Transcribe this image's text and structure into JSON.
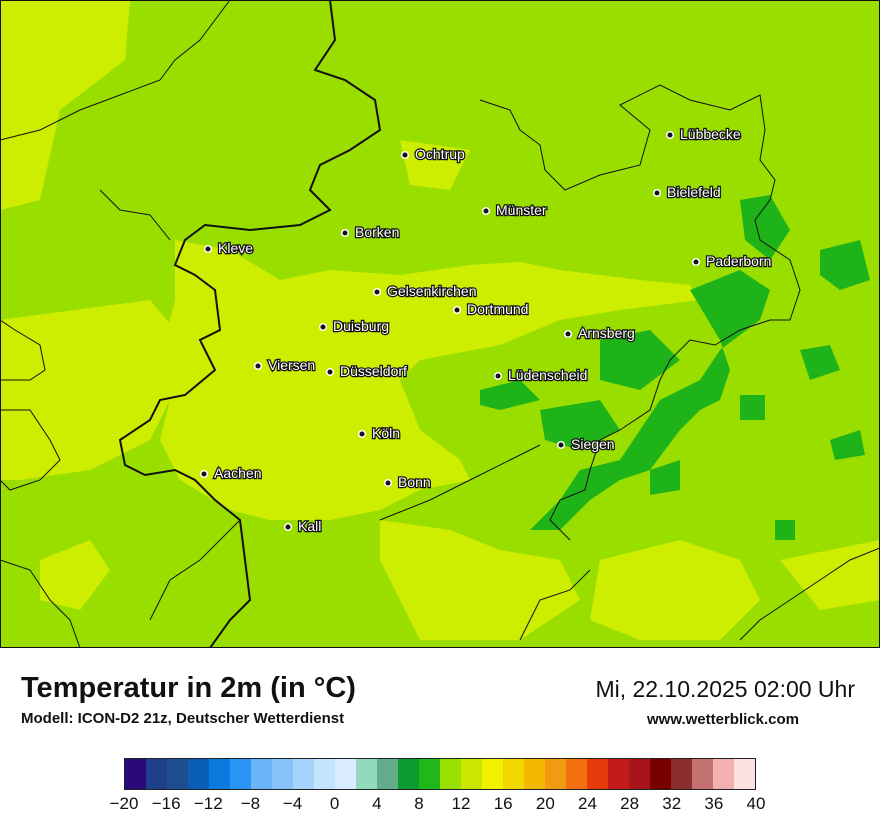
{
  "header": {
    "title": "Temperatur in 2m (in °C)",
    "model": "Modell: ICON-D2 21z, Deutscher Wetterdienst",
    "datetime": "Mi, 22.10.2025 02:00 Uhr",
    "website": "www.wetterblick.com"
  },
  "cities": [
    {
      "name": "Lübbecke"
    },
    {
      "name": "Ochtrup"
    },
    {
      "name": "Bielefeld"
    },
    {
      "name": "Münster"
    },
    {
      "name": "Kleve"
    },
    {
      "name": "Borken"
    },
    {
      "name": "Paderborn"
    },
    {
      "name": "Gelsenkirchen"
    },
    {
      "name": "Dortmund"
    },
    {
      "name": "Duisburg"
    },
    {
      "name": "Arnsberg"
    },
    {
      "name": "Viersen"
    },
    {
      "name": "Düsseldorf"
    },
    {
      "name": "Lüdenscheid"
    },
    {
      "name": "Köln"
    },
    {
      "name": "Siegen"
    },
    {
      "name": "Aachen"
    },
    {
      "name": "Bonn"
    },
    {
      "name": "Kall"
    }
  ],
  "legend": {
    "colors": [
      "#2a0a7a",
      "#1e3f8a",
      "#1d4e8f",
      "#0a5fb4",
      "#0a7ae0",
      "#2b95f5",
      "#6ab5f7",
      "#85c2f7",
      "#a6d3fb",
      "#c4e3fd",
      "#d9ecfd",
      "#92d9bd",
      "#64ad8c",
      "#0c9a33",
      "#20b818",
      "#98e000",
      "#cde600",
      "#f2f200",
      "#f2d800",
      "#f2b800",
      "#f29a10",
      "#f27010",
      "#e63a0a",
      "#c41a1a",
      "#a8141a",
      "#7a0000",
      "#8c2e2e",
      "#c47070",
      "#f2b0b0",
      "#fde0e0"
    ],
    "ticks": [
      "−20",
      "−16",
      "−12",
      "−8",
      "−4",
      "0",
      "4",
      "8",
      "12",
      "16",
      "20",
      "24",
      "28",
      "32",
      "36",
      "40"
    ]
  }
}
